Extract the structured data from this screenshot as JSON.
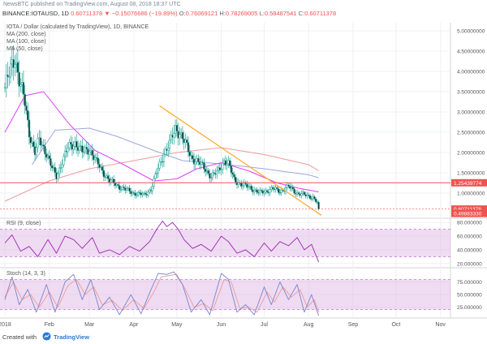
{
  "header": {
    "publish_info": "NewsBTC published on TradingView.com, August 08, 2018 18:37 UTC",
    "symbol": "BINANCE:IOTAUSD, 1D",
    "change": "0.60711378 ▼ −0.15076686 (−19.89%)",
    "o_label": "O:",
    "o_value": "0.76069121",
    "h_label": "H:",
    "h_value": "0.78269005",
    "l_label": "L:",
    "l_value": "0.58487541",
    "c_label": "C:",
    "c_value": "0.60711378"
  },
  "legend": {
    "main_title": "IOTA / Dollar (calculated by TradingView), 1D, BINANCE",
    "ma1": "MA (200, close)",
    "ma2": "MA (100, close)",
    "ma3": "MA (50, close)",
    "rsi": "RSI (9, close)",
    "stoch": "Stoch (14, 3, 3)"
  },
  "footer": {
    "created_with": "Created with",
    "brand": "TradingView"
  },
  "colors": {
    "up": "#26a69a",
    "down": "#26a69a",
    "candle_body_up": "#ffffff",
    "candle_body_down": "#1b2a27",
    "ma200": "#ef9a9a",
    "ma100": "#9fa8da",
    "ma50": "#e040fb",
    "trendline": "#ffa726",
    "support_line": "#ef5350",
    "price_badge": "#ef5350",
    "rsi_line": "#9c27b0",
    "stoch_k": "#7986cb",
    "stoch_d": "#ef9a9a",
    "band_fill": "#e1bee7"
  },
  "chart_data": [
    {
      "type": "candlestick",
      "title": "IOTA / Dollar (calculated by TradingView), 1D, BINANCE",
      "x_tick_labels": [
        "2018",
        "Feb",
        "Mar",
        "Apr",
        "May",
        "Jun",
        "Jul",
        "Aug",
        "Sep",
        "Oct",
        "Nov"
      ],
      "ylim": [
        0.4,
        5.2
      ],
      "y_tick_labels": [
        "5.00000000",
        "4.50000000",
        "4.00000000",
        "3.50000000",
        "3.00000000",
        "2.50000000",
        "2.00000000",
        "1.50000000",
        "1.00000000"
      ],
      "y_tick_values": [
        5.0,
        4.5,
        4.0,
        3.5,
        3.0,
        2.5,
        2.0,
        1.5,
        1.0
      ],
      "horizontal_line": {
        "value": 1.2543977,
        "label": "1.25439774"
      },
      "last_price": {
        "value": 0.60711378,
        "label": "0.60711378"
      },
      "badge_low": {
        "value": 0.4988333,
        "label": "0.49883330"
      },
      "trendline": [
        {
          "date": "2018-04-19",
          "value": 3.15
        },
        {
          "date": "2018-08-10",
          "value": 0.45
        }
      ],
      "anchor_closes": [
        [
          "2018-01-01",
          3.6
        ],
        [
          "2018-01-04",
          3.9
        ],
        [
          "2018-01-08",
          4.4
        ],
        [
          "2018-01-11",
          3.8
        ],
        [
          "2018-01-15",
          3.2
        ],
        [
          "2018-01-18",
          2.5
        ],
        [
          "2018-01-22",
          2.0
        ],
        [
          "2018-01-25",
          2.3
        ],
        [
          "2018-01-30",
          2.0
        ],
        [
          "2018-02-03",
          1.6
        ],
        [
          "2018-02-06",
          1.4
        ],
        [
          "2018-02-10",
          1.8
        ],
        [
          "2018-02-14",
          2.1
        ],
        [
          "2018-02-19",
          2.25
        ],
        [
          "2018-02-24",
          2.0
        ],
        [
          "2018-03-01",
          2.1
        ],
        [
          "2018-03-06",
          1.75
        ],
        [
          "2018-03-10",
          1.55
        ],
        [
          "2018-03-15",
          1.3
        ],
        [
          "2018-03-20",
          1.2
        ],
        [
          "2018-03-25",
          1.1
        ],
        [
          "2018-04-01",
          1.0
        ],
        [
          "2018-04-08",
          0.95
        ],
        [
          "2018-04-13",
          1.1
        ],
        [
          "2018-04-18",
          1.6
        ],
        [
          "2018-04-22",
          2.0
        ],
        [
          "2018-04-26",
          2.2
        ],
        [
          "2018-04-30",
          2.6
        ],
        [
          "2018-05-03",
          2.5
        ],
        [
          "2018-05-07",
          2.2
        ],
        [
          "2018-05-11",
          1.9
        ],
        [
          "2018-05-16",
          1.75
        ],
        [
          "2018-05-21",
          1.6
        ],
        [
          "2018-05-25",
          1.4
        ],
        [
          "2018-05-29",
          1.5
        ],
        [
          "2018-06-03",
          1.8
        ],
        [
          "2018-06-06",
          1.7
        ],
        [
          "2018-06-10",
          1.35
        ],
        [
          "2018-06-15",
          1.2
        ],
        [
          "2018-06-21",
          1.15
        ],
        [
          "2018-06-27",
          1.0
        ],
        [
          "2018-07-02",
          1.05
        ],
        [
          "2018-07-07",
          1.1
        ],
        [
          "2018-07-12",
          1.05
        ],
        [
          "2018-07-18",
          1.15
        ],
        [
          "2018-07-24",
          1.0
        ],
        [
          "2018-07-29",
          0.95
        ],
        [
          "2018-08-04",
          0.9
        ],
        [
          "2018-08-07",
          0.76
        ],
        [
          "2018-08-08",
          0.60711378
        ]
      ],
      "ma200": [
        [
          "2018-01-01",
          0.8
        ],
        [
          "2018-02-01",
          1.3
        ],
        [
          "2018-03-01",
          1.6
        ],
        [
          "2018-04-01",
          1.8
        ],
        [
          "2018-05-01",
          2.0
        ],
        [
          "2018-06-01",
          2.12
        ],
        [
          "2018-07-01",
          1.95
        ],
        [
          "2018-08-01",
          1.7
        ],
        [
          "2018-08-08",
          1.55
        ]
      ],
      "ma100": [
        [
          "2018-01-20",
          1.7
        ],
        [
          "2018-02-05",
          2.55
        ],
        [
          "2018-03-01",
          2.6
        ],
        [
          "2018-03-20",
          2.4
        ],
        [
          "2018-04-15",
          2.05
        ],
        [
          "2018-05-05",
          1.8
        ],
        [
          "2018-06-01",
          1.72
        ],
        [
          "2018-07-01",
          1.6
        ],
        [
          "2018-08-01",
          1.45
        ],
        [
          "2018-08-08",
          1.38
        ]
      ],
      "ma50": [
        [
          "2018-01-01",
          2.5
        ],
        [
          "2018-01-15",
          3.4
        ],
        [
          "2018-01-28",
          3.5
        ],
        [
          "2018-02-15",
          2.7
        ],
        [
          "2018-03-05",
          2.05
        ],
        [
          "2018-03-25",
          1.7
        ],
        [
          "2018-04-15",
          1.3
        ],
        [
          "2018-05-01",
          1.35
        ],
        [
          "2018-05-15",
          1.6
        ],
        [
          "2018-06-01",
          1.75
        ],
        [
          "2018-06-20",
          1.55
        ],
        [
          "2018-07-10",
          1.25
        ],
        [
          "2018-07-25",
          1.12
        ],
        [
          "2018-08-08",
          1.03
        ]
      ]
    },
    {
      "type": "line",
      "title": "RSI (9, close)",
      "ylim": [
        15,
        85
      ],
      "y_tick_labels": [
        "80.000000",
        "60.000000",
        "40.000000",
        "20.000000"
      ],
      "y_tick_values": [
        80,
        60,
        40,
        20
      ],
      "band": [
        30,
        70
      ],
      "series": [
        [
          "2018-01-01",
          50
        ],
        [
          "2018-01-06",
          62
        ],
        [
          "2018-01-12",
          38
        ],
        [
          "2018-01-18",
          45
        ],
        [
          "2018-01-24",
          30
        ],
        [
          "2018-01-31",
          55
        ],
        [
          "2018-02-06",
          35
        ],
        [
          "2018-02-12",
          60
        ],
        [
          "2018-02-18",
          55
        ],
        [
          "2018-02-24",
          42
        ],
        [
          "2018-03-03",
          58
        ],
        [
          "2018-03-08",
          35
        ],
        [
          "2018-03-15",
          40
        ],
        [
          "2018-03-22",
          33
        ],
        [
          "2018-03-29",
          45
        ],
        [
          "2018-04-05",
          38
        ],
        [
          "2018-04-12",
          52
        ],
        [
          "2018-04-17",
          70
        ],
        [
          "2018-04-21",
          82
        ],
        [
          "2018-04-24",
          74
        ],
        [
          "2018-04-28",
          80
        ],
        [
          "2018-05-02",
          70
        ],
        [
          "2018-05-06",
          55
        ],
        [
          "2018-05-12",
          42
        ],
        [
          "2018-05-18",
          48
        ],
        [
          "2018-05-25",
          38
        ],
        [
          "2018-06-01",
          60
        ],
        [
          "2018-06-06",
          52
        ],
        [
          "2018-06-12",
          35
        ],
        [
          "2018-06-18",
          40
        ],
        [
          "2018-06-24",
          30
        ],
        [
          "2018-07-01",
          50
        ],
        [
          "2018-07-06",
          38
        ],
        [
          "2018-07-12",
          52
        ],
        [
          "2018-07-18",
          46
        ],
        [
          "2018-07-24",
          58
        ],
        [
          "2018-07-29",
          40
        ],
        [
          "2018-08-03",
          48
        ],
        [
          "2018-08-08",
          22
        ]
      ]
    },
    {
      "type": "line",
      "title": "Stoch (14, 3, 3)",
      "ylim": [
        5,
        100
      ],
      "y_tick_labels": [
        "75.000000",
        "50.000000",
        "25.000000"
      ],
      "y_tick_values": [
        75,
        50,
        25
      ],
      "band": [
        20,
        80
      ],
      "series_k": [
        [
          "2018-01-01",
          40
        ],
        [
          "2018-01-06",
          85
        ],
        [
          "2018-01-11",
          30
        ],
        [
          "2018-01-17",
          60
        ],
        [
          "2018-01-23",
          15
        ],
        [
          "2018-01-30",
          70
        ],
        [
          "2018-02-05",
          15
        ],
        [
          "2018-02-12",
          75
        ],
        [
          "2018-02-18",
          90
        ],
        [
          "2018-02-24",
          40
        ],
        [
          "2018-03-02",
          80
        ],
        [
          "2018-03-08",
          20
        ],
        [
          "2018-03-15",
          45
        ],
        [
          "2018-03-22",
          10
        ],
        [
          "2018-03-30",
          50
        ],
        [
          "2018-04-06",
          12
        ],
        [
          "2018-04-13",
          60
        ],
        [
          "2018-04-18",
          92
        ],
        [
          "2018-04-24",
          90
        ],
        [
          "2018-04-29",
          95
        ],
        [
          "2018-05-05",
          70
        ],
        [
          "2018-05-11",
          15
        ],
        [
          "2018-05-18",
          40
        ],
        [
          "2018-05-24",
          10
        ],
        [
          "2018-06-01",
          92
        ],
        [
          "2018-06-06",
          80
        ],
        [
          "2018-06-12",
          15
        ],
        [
          "2018-06-18",
          30
        ],
        [
          "2018-06-24",
          10
        ],
        [
          "2018-07-01",
          65
        ],
        [
          "2018-07-06",
          30
        ],
        [
          "2018-07-12",
          75
        ],
        [
          "2018-07-18",
          40
        ],
        [
          "2018-07-24",
          70
        ],
        [
          "2018-07-29",
          15
        ],
        [
          "2018-08-03",
          50
        ],
        [
          "2018-08-08",
          8
        ]
      ],
      "series_d": [
        [
          "2018-01-01",
          45
        ],
        [
          "2018-01-07",
          75
        ],
        [
          "2018-01-13",
          40
        ],
        [
          "2018-01-19",
          50
        ],
        [
          "2018-01-25",
          25
        ],
        [
          "2018-02-01",
          55
        ],
        [
          "2018-02-07",
          25
        ],
        [
          "2018-02-14",
          68
        ],
        [
          "2018-02-20",
          80
        ],
        [
          "2018-02-26",
          50
        ],
        [
          "2018-03-04",
          65
        ],
        [
          "2018-03-10",
          30
        ],
        [
          "2018-03-17",
          38
        ],
        [
          "2018-03-24",
          18
        ],
        [
          "2018-04-01",
          40
        ],
        [
          "2018-04-08",
          22
        ],
        [
          "2018-04-15",
          55
        ],
        [
          "2018-04-20",
          85
        ],
        [
          "2018-04-26",
          88
        ],
        [
          "2018-05-01",
          90
        ],
        [
          "2018-05-07",
          60
        ],
        [
          "2018-05-13",
          25
        ],
        [
          "2018-05-20",
          32
        ],
        [
          "2018-05-26",
          18
        ],
        [
          "2018-06-03",
          80
        ],
        [
          "2018-06-08",
          75
        ],
        [
          "2018-06-14",
          22
        ],
        [
          "2018-06-20",
          25
        ],
        [
          "2018-06-26",
          15
        ],
        [
          "2018-07-03",
          55
        ],
        [
          "2018-07-08",
          35
        ],
        [
          "2018-07-14",
          65
        ],
        [
          "2018-07-20",
          45
        ],
        [
          "2018-07-26",
          60
        ],
        [
          "2018-07-31",
          25
        ],
        [
          "2018-08-05",
          40
        ],
        [
          "2018-08-08",
          15
        ]
      ]
    }
  ]
}
